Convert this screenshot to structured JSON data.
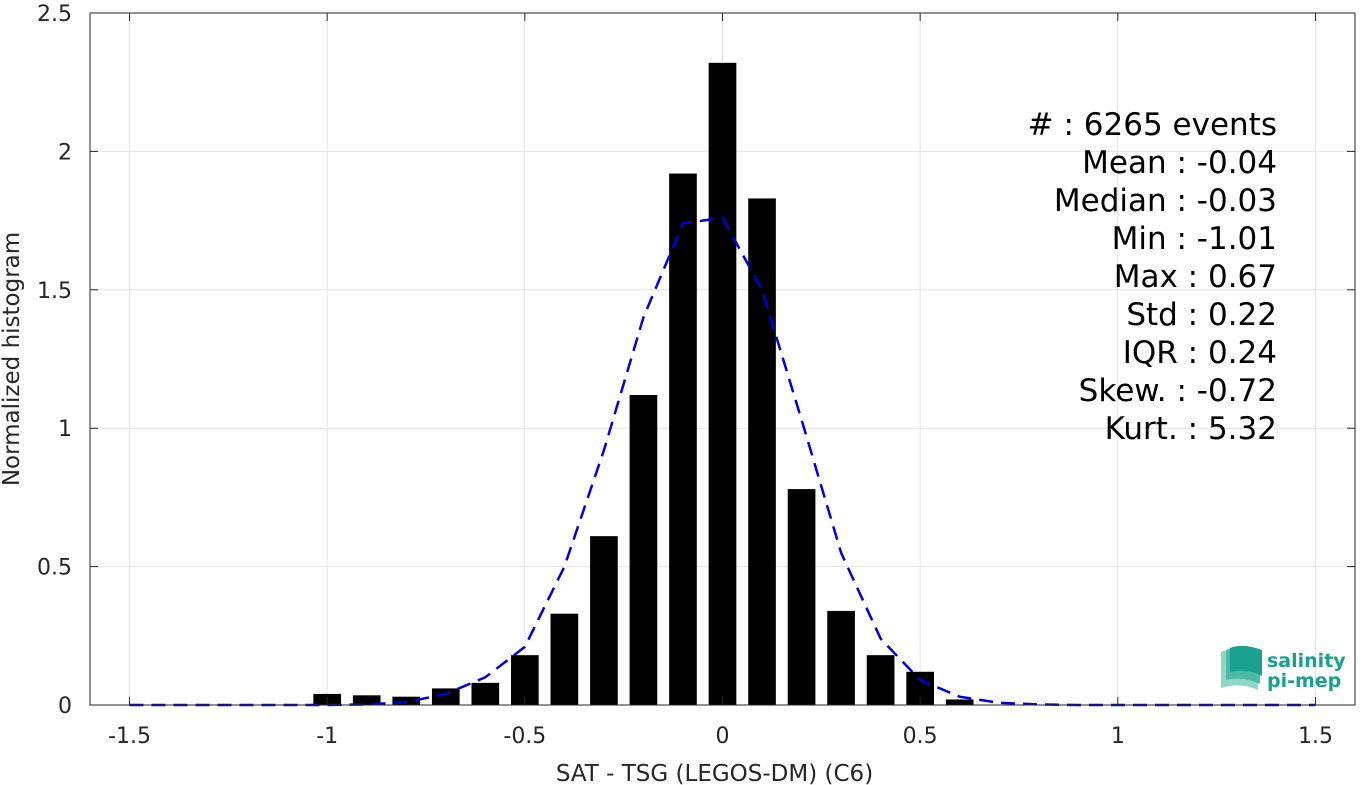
{
  "chart_data": {
    "type": "bar",
    "title": "",
    "xlabel": "SAT - TSG (LEGOS-DM) (C6)",
    "ylabel": "Normalized histogram",
    "xlim": [
      -1.6,
      1.6
    ],
    "ylim": [
      0,
      2.5
    ],
    "xticks": [
      -1.5,
      -1,
      -0.5,
      0,
      0.5,
      1,
      1.5
    ],
    "xtick_labels": [
      "-1.5",
      "-1",
      "-0.5",
      "0",
      "0.5",
      "1",
      "1.5"
    ],
    "yticks": [
      0,
      0.5,
      1,
      1.5,
      2,
      2.5
    ],
    "ytick_labels": [
      "0",
      "0.5",
      "1",
      "1.5",
      "2",
      "2.5"
    ],
    "grid": true,
    "bar_width": 0.07,
    "bar_color": "#000000",
    "bars": [
      {
        "x": -1.0,
        "y": 0.04
      },
      {
        "x": -0.9,
        "y": 0.035
      },
      {
        "x": -0.8,
        "y": 0.03
      },
      {
        "x": -0.7,
        "y": 0.06
      },
      {
        "x": -0.6,
        "y": 0.08
      },
      {
        "x": -0.5,
        "y": 0.18
      },
      {
        "x": -0.4,
        "y": 0.33
      },
      {
        "x": -0.3,
        "y": 0.61
      },
      {
        "x": -0.2,
        "y": 1.12
      },
      {
        "x": -0.1,
        "y": 1.92
      },
      {
        "x": 0.0,
        "y": 2.32
      },
      {
        "x": 0.1,
        "y": 1.83
      },
      {
        "x": 0.2,
        "y": 0.78
      },
      {
        "x": 0.3,
        "y": 0.34
      },
      {
        "x": 0.4,
        "y": 0.18
      },
      {
        "x": 0.5,
        "y": 0.12
      },
      {
        "x": 0.6,
        "y": 0.02
      }
    ],
    "fit_curve": {
      "color": "#0000dd",
      "style": "dashed",
      "x": [
        -1.5,
        -1.4,
        -1.3,
        -1.2,
        -1.1,
        -1.0,
        -0.9,
        -0.8,
        -0.7,
        -0.6,
        -0.5,
        -0.4,
        -0.3,
        -0.2,
        -0.1,
        0.0,
        0.1,
        0.2,
        0.3,
        0.4,
        0.5,
        0.6,
        0.7,
        0.8,
        0.9,
        1.0,
        1.1,
        1.2,
        1.3,
        1.4,
        1.5
      ],
      "y": [
        0,
        0,
        0,
        0,
        0,
        0,
        0.002,
        0.01,
        0.04,
        0.1,
        0.21,
        0.5,
        0.92,
        1.4,
        1.74,
        1.76,
        1.5,
        1.03,
        0.55,
        0.24,
        0.09,
        0.03,
        0.008,
        0.002,
        0,
        0,
        0,
        0,
        0,
        0,
        0
      ]
    },
    "stats": [
      "#  : 6265 events",
      "Mean : -0.04",
      "Median : -0.03",
      "Min : -1.01",
      "Max : 0.67",
      "Std : 0.22",
      "IQR : 0.24",
      "Skew. : -0.72",
      "Kurt. : 5.32"
    ]
  },
  "logo": {
    "line1": "salinity",
    "line2": "pi-mep",
    "color": "#1aa08e"
  }
}
